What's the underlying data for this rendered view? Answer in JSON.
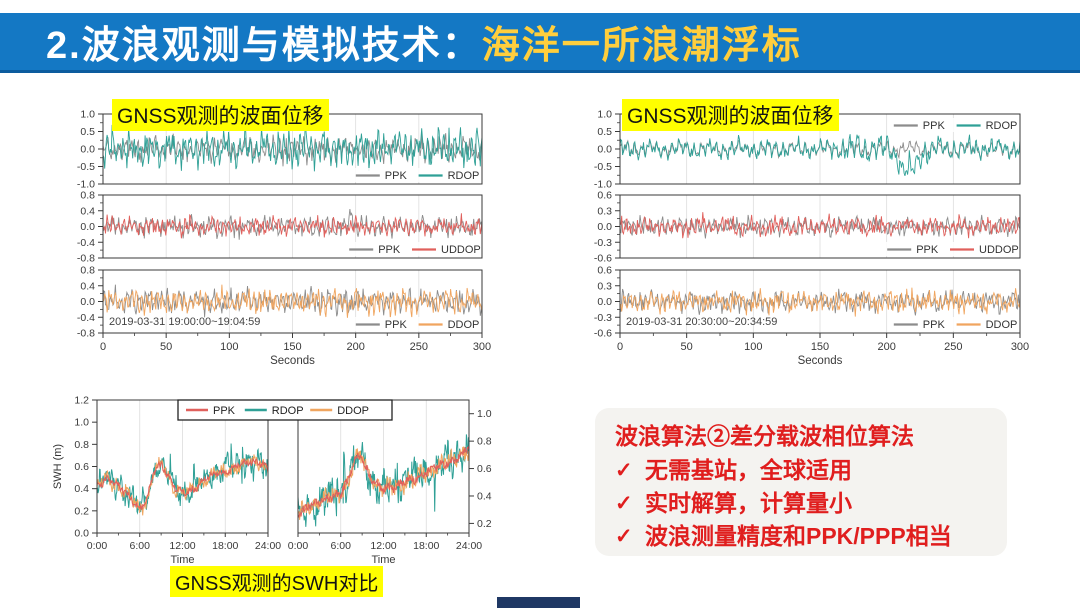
{
  "header": {
    "title_white": "2.波浪观测与模拟技术：",
    "title_yellow": "海洋一所浪潮浮标",
    "bg_color": "#1478C4",
    "accent_text_color": "#FFCE3D"
  },
  "labels": {
    "displacement_left": "GNSS观测的波面位移",
    "displacement_right": "GNSS观测的波面位移",
    "swh": "GNSS观测的SWH对比",
    "highlight_bg": "#FFFF00"
  },
  "algo_box": {
    "title": "波浪算法②差分载波相位算法",
    "check_glyph": "✓",
    "items": [
      "无需基站，全球适用",
      "实时解算，计算量小",
      "波浪测量精度和PPK/PPP相当"
    ],
    "text_color": "#E01E1E",
    "bg_color": "#F4F3F0"
  },
  "colors": {
    "ppk_gray": "#8C8C8C",
    "rdop_teal": "#2FA096",
    "uddop_red": "#E0605C",
    "ddop_orange": "#F0A55F",
    "ppk_red": "#E0605C",
    "grid": "#DCDCDC",
    "axis": "#3A3A3A",
    "bottom_bar": "#1F3864"
  },
  "chart_data": [
    {
      "id": "displacement-left",
      "type": "line",
      "title": "GNSS观测的波面位移",
      "xlabel": "Seconds",
      "xlim": [
        0,
        300
      ],
      "x_ticks": [
        0,
        50,
        100,
        150,
        200,
        250,
        300
      ],
      "annotation": "2019-03-31 19:00:00~19:04:59",
      "panels": [
        {
          "ylim": [
            -1.0,
            1.0
          ],
          "yticks": [
            "1.0",
            "0.5",
            "0.0",
            "-0.5",
            "-1.0"
          ],
          "legend_pos": "bottom-right",
          "series": [
            {
              "name": "PPK",
              "color_key": "ppk_gray",
              "amp": 0.34,
              "seed": 11
            },
            {
              "name": "RDOP",
              "color_key": "rdop_teal",
              "amp": 0.5,
              "seed": 12,
              "spike_p": 0.03,
              "spike_gain": 1.5
            }
          ]
        },
        {
          "ylim": [
            -0.8,
            0.8
          ],
          "yticks": [
            "0.8",
            "0.4",
            "0.0",
            "-0.4",
            "-0.8"
          ],
          "legend_pos": "bottom-right",
          "series": [
            {
              "name": "PPK",
              "color_key": "ppk_gray",
              "amp": 0.24,
              "seed": 13,
              "events": [
                {
                  "t": 0.655,
                  "w": 0.004,
                  "dv": 0.42
                }
              ]
            },
            {
              "name": "UDDOP",
              "color_key": "uddop_red",
              "amp": 0.23,
              "seed": 14,
              "spike_p": 0.02,
              "spike_gain": 1.5
            }
          ]
        },
        {
          "ylim": [
            -0.8,
            0.8
          ],
          "yticks": [
            "0.8",
            "0.4",
            "0.0",
            "-0.4",
            "-0.8"
          ],
          "legend_pos": "bottom-right",
          "annotation": true,
          "series": [
            {
              "name": "PPK",
              "color_key": "ppk_gray",
              "amp": 0.3,
              "seed": 15
            },
            {
              "name": "DDOP",
              "color_key": "ddop_orange",
              "amp": 0.3,
              "seed": 16
            }
          ]
        }
      ]
    },
    {
      "id": "displacement-right",
      "type": "line",
      "title": "GNSS观测的波面位移",
      "xlabel": "Seconds",
      "xlim": [
        0,
        300
      ],
      "x_ticks": [
        0,
        50,
        100,
        150,
        200,
        250,
        300
      ],
      "annotation": "2019-03-31 20:30:00~20:34:59",
      "panels": [
        {
          "ylim": [
            -1.0,
            1.0
          ],
          "yticks": [
            "1.0",
            "0.5",
            "0.0",
            "-0.5",
            "-1.0"
          ],
          "legend_pos": "top-right",
          "series": [
            {
              "name": "PPK",
              "color_key": "ppk_gray",
              "base_seed": 31,
              "base_amp": 0.27,
              "scale": 0.85,
              "jitter": 0.06,
              "seed": 17
            },
            {
              "name": "RDOP",
              "color_key": "rdop_teal",
              "base_seed": 31,
              "base_amp": 0.27,
              "scale": 1.05,
              "jitter": 0.11,
              "seed": 18,
              "spike_p": 0.02,
              "spike_gain": 1.4,
              "env": {
                "t": 0.68,
                "w": 0.09,
                "gain": 0.5
              },
              "events": [
                {
                  "t": 0.715,
                  "w": 0.016,
                  "dv": -0.6
                },
                {
                  "t": 0.74,
                  "w": 0.01,
                  "dv": -0.25
                }
              ]
            }
          ]
        },
        {
          "ylim": [
            -0.6,
            0.6
          ],
          "yticks": [
            "0.6",
            "0.3",
            "0.0",
            "-0.3",
            "-0.6"
          ],
          "legend_pos": "bottom-right",
          "series": [
            {
              "name": "PPK",
              "color_key": "ppk_gray",
              "amp": 0.17,
              "seed": 19
            },
            {
              "name": "UDDOP",
              "color_key": "uddod_red_fallback",
              "amp": 0.18,
              "seed": 20,
              "spike_p": 0.02,
              "spike_gain": 1.4
            }
          ]
        },
        {
          "ylim": [
            -0.6,
            0.6
          ],
          "yticks": [
            "0.6",
            "0.3",
            "0.0",
            "-0.3",
            "-0.6"
          ],
          "legend_pos": "bottom-right",
          "annotation": true,
          "series": [
            {
              "name": "PPK",
              "color_key": "ppk_gray",
              "amp": 0.2,
              "seed": 25
            },
            {
              "name": "DDOP",
              "color_key": "ddop_orange",
              "amp": 0.2,
              "seed": 26
            }
          ]
        }
      ]
    },
    {
      "id": "swh-comparison",
      "type": "line",
      "title": "GNSS观测的SWH对比",
      "ylabel": "SWH (m)",
      "xlabel": "Time",
      "x_ticks": [
        "0:00",
        "6:00",
        "12:00",
        "18:00",
        "24:00"
      ],
      "x_tick_hours": [
        0,
        6,
        12,
        18,
        24
      ],
      "legend": [
        "PPK",
        "RDOP",
        "DDOP"
      ],
      "panels": [
        {
          "ylim": [
            0,
            1.2
          ],
          "yticks": [
            "1.2",
            "1.0",
            "0.8",
            "0.6",
            "0.4",
            "0.2",
            "0.0"
          ],
          "tick_side": "left",
          "base": [
            [
              0,
              0.42
            ],
            [
              1.5,
              0.5
            ],
            [
              3,
              0.42
            ],
            [
              5,
              0.3
            ],
            [
              6,
              0.22
            ],
            [
              7,
              0.3
            ],
            [
              8,
              0.55
            ],
            [
              9,
              0.62
            ],
            [
              9.7,
              0.55
            ],
            [
              11,
              0.4
            ],
            [
              12.5,
              0.36
            ],
            [
              14,
              0.42
            ],
            [
              15.5,
              0.5
            ],
            [
              17,
              0.55
            ],
            [
              18,
              0.55
            ],
            [
              19.5,
              0.6
            ],
            [
              21,
              0.63
            ],
            [
              22.5,
              0.65
            ],
            [
              24,
              0.58
            ]
          ]
        },
        {
          "ylim": [
            0.13,
            1.1
          ],
          "yticks": [
            "1.0",
            "0.8",
            "0.6",
            "0.4",
            "0.2"
          ],
          "tick_side": "right",
          "base": [
            [
              0,
              0.27
            ],
            [
              1.5,
              0.33
            ],
            [
              3,
              0.35
            ],
            [
              4.5,
              0.4
            ],
            [
              6,
              0.42
            ],
            [
              7,
              0.5
            ],
            [
              8,
              0.66
            ],
            [
              8.8,
              0.7
            ],
            [
              10,
              0.55
            ],
            [
              11,
              0.48
            ],
            [
              12,
              0.45
            ],
            [
              13.5,
              0.47
            ],
            [
              15,
              0.5
            ],
            [
              16.5,
              0.52
            ],
            [
              18,
              0.58
            ],
            [
              20,
              0.62
            ],
            [
              21.5,
              0.66
            ],
            [
              23,
              0.7
            ],
            [
              24,
              0.75
            ]
          ]
        }
      ],
      "series": [
        {
          "name": "PPK",
          "color_key": "ppk_red",
          "noise": 0.028,
          "seed": 21
        },
        {
          "name": "RDOP",
          "color_key": "rdop_teal",
          "noise": 0.1,
          "seed": 22,
          "spike_p": 0.055,
          "spike_amp": 0.33
        },
        {
          "name": "DDOP",
          "color_key": "ddop_orange",
          "noise": 0.055,
          "seed": 23
        }
      ]
    }
  ]
}
